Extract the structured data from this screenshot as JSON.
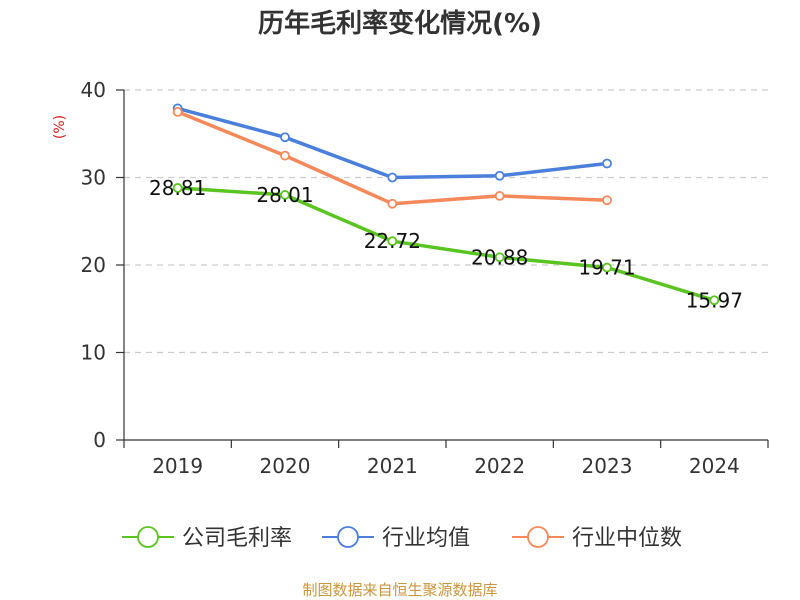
{
  "chart_data": {
    "type": "line",
    "title": "历年毛利率变化情况(%)",
    "ylabel": "(%)",
    "categories": [
      "2019",
      "2020",
      "2021",
      "2022",
      "2023",
      "2024"
    ],
    "ylim": [
      0,
      40
    ],
    "yticks": [
      0,
      10,
      20,
      30,
      40
    ],
    "grid": true,
    "legend_position": "bottom",
    "series": [
      {
        "name": "公司毛利率",
        "color": "#5ac421",
        "values": [
          28.81,
          28.01,
          22.72,
          20.88,
          19.71,
          15.97
        ],
        "labels": [
          "28.81",
          "28.01",
          "22.72",
          "20.88",
          "19.71",
          "15.97"
        ]
      },
      {
        "name": "行业均值",
        "color": "#4a7fdc",
        "values": [
          37.9,
          34.6,
          30.0,
          30.2,
          31.6,
          null
        ]
      },
      {
        "name": "行业中位数",
        "color": "#f6895a",
        "values": [
          37.5,
          32.5,
          27.0,
          27.9,
          27.4,
          null
        ]
      }
    ],
    "source": "制图数据来自恒生聚源数据库"
  }
}
